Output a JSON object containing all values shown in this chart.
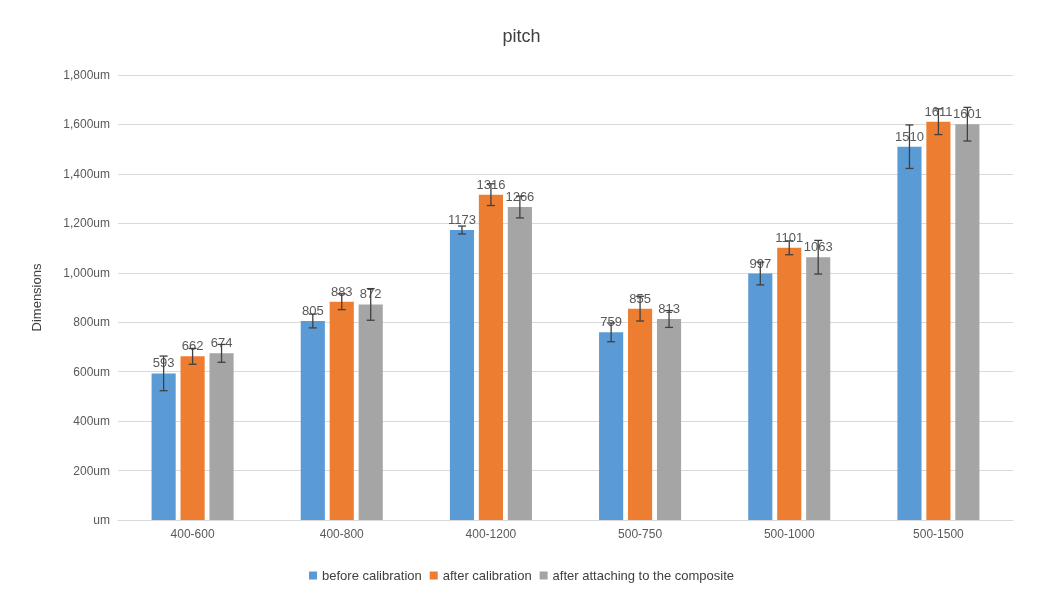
{
  "chart_data": {
    "type": "bar",
    "title": "pitch",
    "ylabel": "Dimensions",
    "categories": [
      "400-600",
      "400-800",
      "400-1200",
      "500-750",
      "500-1000",
      "500-1500"
    ],
    "series": [
      {
        "name": "before calibration",
        "color": "#5b9bd5",
        "values": [
          593,
          805,
          1173,
          759,
          997,
          1510
        ],
        "errors": [
          70,
          28,
          16,
          38,
          46,
          88
        ]
      },
      {
        "name": "after calibration",
        "color": "#ed7d31",
        "values": [
          662,
          883,
          1316,
          855,
          1101,
          1611
        ],
        "errors": [
          32,
          32,
          44,
          50,
          28,
          52
        ]
      },
      {
        "name": "after attaching to the composite",
        "color": "#a5a5a5",
        "values": [
          674,
          872,
          1266,
          813,
          1063,
          1601
        ],
        "errors": [
          36,
          64,
          44,
          34,
          68,
          68
        ]
      }
    ],
    "ylim": [
      0,
      1800
    ],
    "yticks": [
      {
        "value": 0,
        "label": "um"
      },
      {
        "value": 200,
        "label": "200um"
      },
      {
        "value": 400,
        "label": "400um"
      },
      {
        "value": 600,
        "label": "600um"
      },
      {
        "value": 800,
        "label": "800um"
      },
      {
        "value": 1000,
        "label": "1,000um"
      },
      {
        "value": 1200,
        "label": "1,200um"
      },
      {
        "value": 1400,
        "label": "1,400um"
      },
      {
        "value": 1600,
        "label": "1,600um"
      },
      {
        "value": 1800,
        "label": "1,800um"
      }
    ],
    "data_labels": true,
    "grid": "y",
    "legend": "bottom"
  }
}
